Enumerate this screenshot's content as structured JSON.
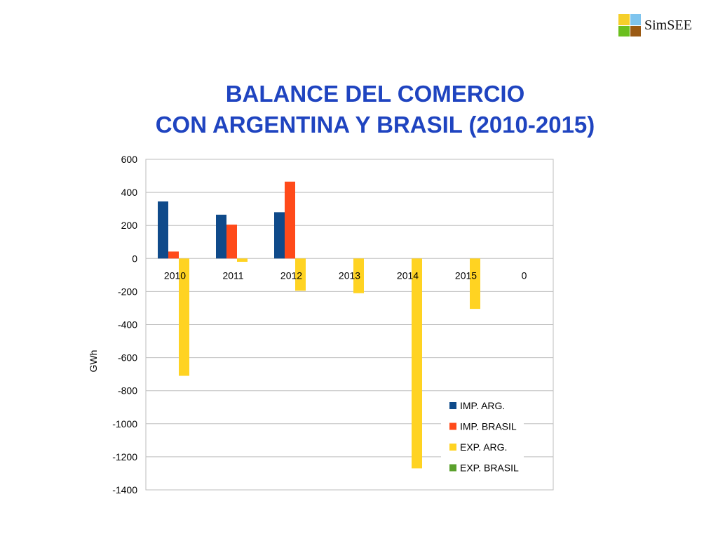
{
  "logo": {
    "text": "SimSEE",
    "colors": [
      "#f5cf2a",
      "#7ec4ee",
      "#6bbf1e",
      "#9a5a14"
    ]
  },
  "title": {
    "line1": "BALANCE  DEL COMERCIO",
    "line2": "CON ARGENTINA Y BRASIL (2010-2015)"
  },
  "chart_data": {
    "type": "bar",
    "categories": [
      "2010",
      "2011",
      "2012",
      "2013",
      "2014",
      "2015",
      "0"
    ],
    "ylabel": "GWh",
    "ylim": [
      -1400,
      600
    ],
    "yticks": [
      600,
      400,
      200,
      0,
      -200,
      -400,
      -600,
      -800,
      -1000,
      -1200,
      -1400
    ],
    "grid": true,
    "legend_position": "bottom-right",
    "series": [
      {
        "name": "IMP. ARG.",
        "color": "#0f4a8a",
        "values": [
          345,
          265,
          280,
          0,
          0,
          0,
          0
        ]
      },
      {
        "name": "IMP. BRASIL",
        "color": "#ff4a1a",
        "values": [
          42,
          205,
          465,
          0,
          0,
          0,
          0
        ]
      },
      {
        "name": "EXP. ARG.",
        "color": "#ffd322",
        "values": [
          -710,
          -20,
          -195,
          -210,
          -1270,
          -305,
          0
        ]
      },
      {
        "name": "EXP. BRASIL",
        "color": "#5aa02c",
        "values": [
          0,
          0,
          0,
          0,
          0,
          0,
          0
        ]
      }
    ]
  }
}
